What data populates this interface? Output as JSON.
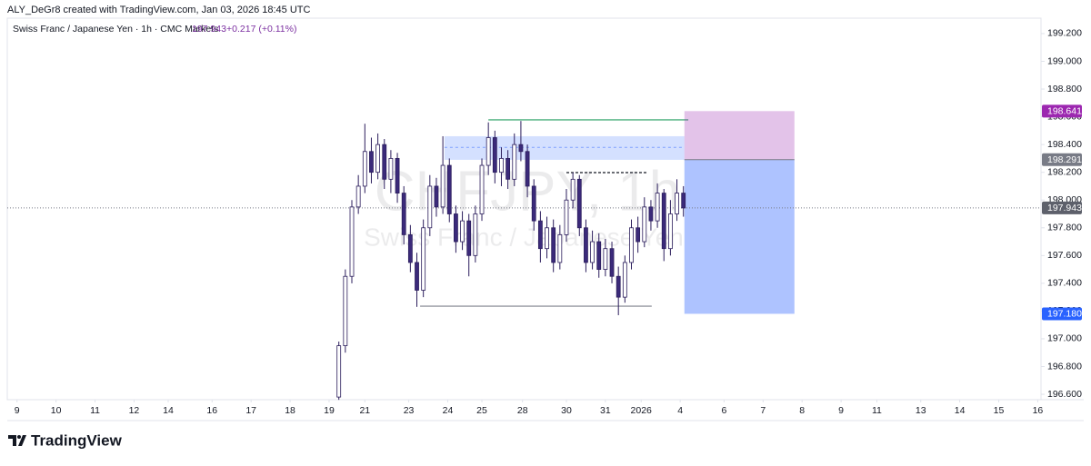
{
  "header": {
    "credit": "ALY_DeGr8 created with TradingView.com, Jan 03, 2026 18:45 UTC"
  },
  "footer": {
    "brand": "TradingView"
  },
  "chart_data": {
    "type": "candlestick",
    "legend": {
      "symbol": "Swiss Franc / Japanese Yen · 1h · CMC Markets",
      "change": "+0.217 (+0.11%)"
    },
    "watermark": {
      "ticker": "CHFJPY, 1h",
      "description": "Swiss Franc / Japanese Yen"
    },
    "last_price": {
      "value": 197.943,
      "label": "197.943"
    },
    "xlim": [
      -6,
      630
    ],
    "ylim": [
      196.561,
      199.311
    ],
    "xticks": [
      {
        "value": 0,
        "label": "9"
      },
      {
        "value": 24,
        "label": "10"
      },
      {
        "value": 48,
        "label": "11"
      },
      {
        "value": 72,
        "label": "12"
      },
      {
        "value": 93,
        "label": "14"
      },
      {
        "value": 120,
        "label": "16"
      },
      {
        "value": 144,
        "label": "17"
      },
      {
        "value": 168,
        "label": "18"
      },
      {
        "value": 192,
        "label": "19"
      },
      {
        "value": 214,
        "label": "21"
      },
      {
        "value": 241,
        "label": "23"
      },
      {
        "value": 265,
        "label": "24"
      },
      {
        "value": 286,
        "label": "25"
      },
      {
        "value": 311,
        "label": "28"
      },
      {
        "value": 338,
        "label": "30"
      },
      {
        "value": 362,
        "label": "31"
      },
      {
        "value": 384,
        "label": "2026"
      },
      {
        "value": 408,
        "label": "4"
      },
      {
        "value": 435,
        "label": "6"
      },
      {
        "value": 459,
        "label": "7"
      },
      {
        "value": 483,
        "label": "8"
      },
      {
        "value": 507,
        "label": "9"
      },
      {
        "value": 529,
        "label": "11"
      },
      {
        "value": 556,
        "label": "13"
      },
      {
        "value": 580,
        "label": "14"
      },
      {
        "value": 604,
        "label": "15"
      },
      {
        "value": 628,
        "label": "16"
      }
    ],
    "yticks": [
      {
        "value": 196.6,
        "label": "196.600"
      },
      {
        "value": 196.8,
        "label": "196.800"
      },
      {
        "value": 197,
        "label": "197.000"
      },
      {
        "value": 197.2,
        "label": "197.200"
      },
      {
        "value": 197.4,
        "label": "197.400"
      },
      {
        "value": 197.6,
        "label": "197.600"
      },
      {
        "value": 197.8,
        "label": "197.800"
      },
      {
        "value": 198,
        "label": "198.000"
      },
      {
        "value": 198.2,
        "label": "198.200"
      },
      {
        "value": 198.4,
        "label": "198.400"
      },
      {
        "value": 198.6,
        "label": "198.600"
      },
      {
        "value": 198.8,
        "label": "198.800"
      },
      {
        "value": 199,
        "label": "199.000"
      },
      {
        "value": 199.2,
        "label": "199.200"
      }
    ],
    "series": [
      {
        "up_color": "#ffffff",
        "down_color": "#3b2a7a",
        "wick_color": "#2b1d5c",
        "x": [
          198,
          202,
          206,
          210,
          214,
          218,
          222,
          226,
          230,
          234,
          238,
          242,
          246,
          250,
          254,
          258,
          262,
          266,
          270,
          274,
          278,
          282,
          286,
          290,
          294,
          298,
          302,
          306,
          310,
          314,
          318,
          322,
          326,
          330,
          334,
          338,
          342,
          346,
          350,
          354,
          358,
          362,
          366,
          370,
          374,
          378,
          382,
          386,
          390,
          394,
          398,
          402,
          406,
          410
        ],
        "open": [
          196.58,
          196.95,
          197.45,
          197.95,
          198.1,
          198.35,
          198.2,
          198.4,
          198.15,
          198.3,
          198.05,
          197.75,
          197.55,
          197.35,
          197.8,
          198.1,
          197.95,
          198.25,
          197.9,
          197.7,
          197.85,
          197.6,
          197.9,
          198.25,
          198.45,
          198.2,
          198.3,
          198.15,
          198.4,
          198.35,
          198.1,
          197.85,
          197.65,
          197.8,
          197.55,
          197.75,
          198.0,
          198.15,
          197.8,
          197.55,
          197.7,
          197.5,
          197.65,
          197.45,
          197.3,
          197.55,
          197.8,
          197.7,
          197.95,
          197.85,
          198.05,
          197.65,
          197.9,
          198.05
        ],
        "high": [
          196.98,
          197.5,
          198.0,
          198.18,
          198.55,
          198.45,
          198.48,
          198.44,
          198.36,
          198.34,
          198.1,
          197.82,
          197.62,
          197.86,
          198.18,
          198.16,
          198.46,
          198.3,
          197.96,
          197.92,
          197.9,
          197.96,
          198.3,
          198.56,
          198.5,
          198.38,
          198.36,
          198.48,
          198.57,
          198.4,
          198.15,
          197.92,
          197.88,
          197.86,
          197.82,
          198.08,
          198.2,
          198.18,
          197.86,
          197.78,
          197.76,
          197.72,
          197.7,
          197.52,
          197.6,
          197.86,
          197.88,
          198.02,
          198.0,
          198.12,
          198.08,
          198.0,
          198.15,
          198.1
        ],
        "low": [
          196.56,
          196.9,
          197.4,
          197.9,
          198.05,
          198.12,
          198.15,
          198.08,
          198.05,
          197.98,
          197.68,
          197.48,
          197.23,
          197.3,
          197.74,
          197.88,
          197.9,
          197.84,
          197.62,
          197.64,
          197.45,
          197.55,
          197.85,
          198.18,
          198.12,
          198.1,
          198.08,
          198.1,
          198.28,
          198.02,
          197.78,
          197.55,
          197.58,
          197.48,
          197.5,
          197.7,
          197.94,
          197.74,
          197.48,
          197.5,
          197.44,
          197.45,
          197.4,
          197.17,
          197.26,
          197.5,
          197.62,
          197.66,
          197.78,
          197.8,
          197.56,
          197.6,
          197.85,
          197.88
        ],
        "close": [
          196.95,
          197.45,
          197.95,
          198.1,
          198.35,
          198.2,
          198.4,
          198.15,
          198.3,
          198.05,
          197.75,
          197.55,
          197.35,
          197.8,
          198.1,
          197.95,
          198.25,
          197.9,
          197.7,
          197.85,
          197.6,
          197.9,
          198.25,
          198.45,
          198.2,
          198.3,
          198.15,
          198.4,
          198.35,
          198.1,
          197.85,
          197.65,
          197.8,
          197.55,
          197.75,
          198.0,
          198.15,
          197.8,
          197.55,
          197.7,
          197.5,
          197.65,
          197.45,
          197.3,
          197.55,
          197.8,
          197.7,
          197.95,
          197.85,
          198.05,
          197.65,
          197.9,
          198.05,
          197.943
        ]
      }
    ],
    "drawings": {
      "zone": {
        "x": [
          263,
          410.6
        ],
        "y": [
          198.29,
          198.46
        ],
        "mid": 198.38,
        "color": "#2962ff"
      },
      "high_line": {
        "x": [
          290,
          413
        ],
        "y": 198.578,
        "color": "#4caf7d"
      },
      "dashed_line": {
        "x": [
          338,
          388
        ],
        "y": 198.198,
        "color": "#131722"
      },
      "low_line": {
        "x": [
          248,
          390.5
        ],
        "y": 197.235,
        "color": "#9598a1"
      }
    },
    "position": {
      "x": [
        410.6,
        478.3
      ],
      "stop": {
        "value": 198.641,
        "label": "198.641"
      },
      "entry": {
        "value": 198.291,
        "label": "198.291"
      },
      "target": {
        "value": 197.18,
        "label": "197.180"
      },
      "stop_color": "#9c27b0",
      "entry_color": "#787b86",
      "target_color": "#2962ff"
    }
  }
}
